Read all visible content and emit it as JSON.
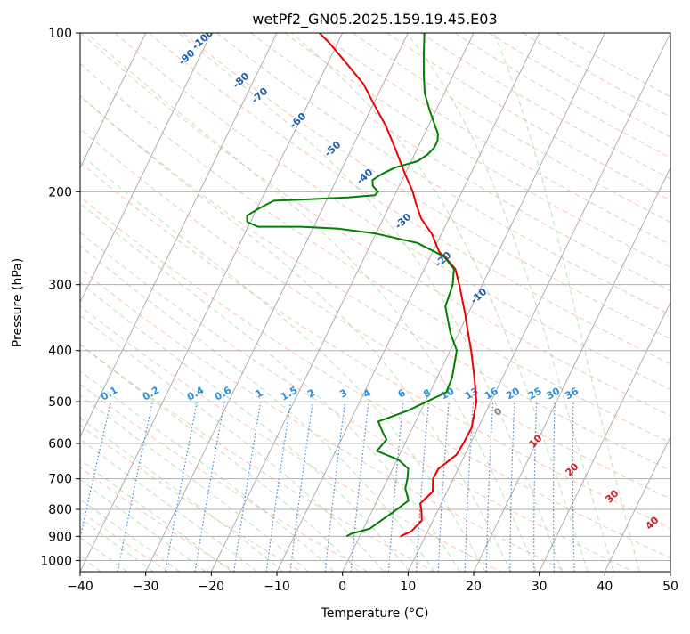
{
  "chart_data": {
    "type": "line",
    "title": "wetPf2_GN05.2025.159.19.45.E03",
    "xlabel": "Temperature (°C)",
    "ylabel": "Pressure (hPa)",
    "xlim": [
      -40,
      50
    ],
    "ylim": [
      1050,
      100
    ],
    "y_scale": "log",
    "grid": true,
    "x_ticks": [
      -40,
      -30,
      -20,
      -10,
      0,
      10,
      20,
      30,
      40,
      50
    ],
    "y_ticks": [
      100,
      200,
      300,
      400,
      500,
      600,
      700,
      800,
      900,
      1000
    ],
    "series": [
      {
        "name": "",
        "color": "#ee0000",
        "points": [
          [
            6.2,
            900
          ],
          [
            7.5,
            880
          ],
          [
            8.3,
            840
          ],
          [
            7.4,
            800
          ],
          [
            6.8,
            780
          ],
          [
            7.8,
            740
          ],
          [
            6.9,
            700
          ],
          [
            7.0,
            670
          ],
          [
            8.7,
            630
          ],
          [
            8.9,
            600
          ],
          [
            9.0,
            560
          ],
          [
            7.8,
            500
          ],
          [
            5.7,
            450
          ],
          [
            3.2,
            400
          ],
          [
            1.4,
            370
          ],
          [
            -0.5,
            340
          ],
          [
            -3.5,
            300
          ],
          [
            -5.3,
            280
          ],
          [
            -7.0,
            270
          ],
          [
            -9.0,
            260
          ],
          [
            -11.5,
            240
          ],
          [
            -14.2,
            225
          ],
          [
            -16.2,
            210
          ],
          [
            -17.5,
            200
          ],
          [
            -20.0,
            185
          ],
          [
            -23.5,
            165
          ],
          [
            -26.5,
            150
          ],
          [
            -30.3,
            135
          ],
          [
            -33.0,
            125
          ],
          [
            -36.8,
            115
          ],
          [
            -41.0,
            105
          ],
          [
            -43.5,
            100
          ]
        ]
      },
      {
        "name": "",
        "color": "#008000",
        "points": [
          [
            -2.0,
            900
          ],
          [
            -1.5,
            890
          ],
          [
            1.0,
            870
          ],
          [
            2.1,
            840
          ],
          [
            3.3,
            810
          ],
          [
            4.8,
            770
          ],
          [
            3.4,
            730
          ],
          [
            3.0,
            700
          ],
          [
            2.4,
            670
          ],
          [
            0.3,
            645
          ],
          [
            -3.7,
            620
          ],
          [
            -3.1,
            590
          ],
          [
            -4.3,
            570
          ],
          [
            -5.7,
            545
          ],
          [
            -2.0,
            520
          ],
          [
            2.5,
            480
          ],
          [
            2.3,
            450
          ],
          [
            1.0,
            400
          ],
          [
            -1.3,
            370
          ],
          [
            -4.0,
            330
          ],
          [
            -4.5,
            300
          ],
          [
            -5.5,
            280
          ],
          [
            -8.0,
            265
          ],
          [
            -13.0,
            250
          ],
          [
            -20.0,
            240
          ],
          [
            -26.0,
            235
          ],
          [
            -32.0,
            233
          ],
          [
            -38.5,
            233
          ],
          [
            -40.5,
            228
          ],
          [
            -41.0,
            222
          ],
          [
            -39.7,
            215
          ],
          [
            -38.0,
            208
          ],
          [
            -34.0,
            207
          ],
          [
            -27.0,
            205
          ],
          [
            -23.0,
            203
          ],
          [
            -22.8,
            200
          ],
          [
            -24.0,
            195
          ],
          [
            -24.5,
            190
          ],
          [
            -23.5,
            185
          ],
          [
            -22.0,
            180
          ],
          [
            -19.0,
            175
          ],
          [
            -18.0,
            170
          ],
          [
            -17.5,
            165
          ],
          [
            -17.5,
            160
          ],
          [
            -18.0,
            155
          ],
          [
            -19.0,
            150
          ],
          [
            -21.0,
            140
          ],
          [
            -23.0,
            130
          ],
          [
            -24.5,
            120
          ],
          [
            -26.0,
            110
          ],
          [
            -27.5,
            100
          ]
        ]
      }
    ],
    "dry_adiabats_labels": [
      "-100",
      "-90",
      "-80",
      "-70",
      "-60",
      "-50",
      "-40",
      "-30",
      "-20",
      "-10"
    ],
    "moist_adiabat_labels": [
      "0",
      "10",
      "20",
      "30",
      "40"
    ],
    "mixing_ratio_labels": [
      "0.1",
      "0.2",
      "0.4",
      "0.6",
      "1",
      "1.5",
      "2",
      "3",
      "4",
      "6",
      "8",
      "10",
      "13",
      "16",
      "20",
      "25",
      "30",
      "36"
    ],
    "colors": {
      "dry_adiabat_line": "#f4a07a",
      "moist_adiabat_line": "#86c986",
      "mixing_ratio_line": "#2b7fd8",
      "isotherm": "#999999",
      "dry_label": "#1f5fa8",
      "moist_label": "#cc2222",
      "mixing_label": "#2b8fe0",
      "zero_label": "#888888"
    }
  }
}
